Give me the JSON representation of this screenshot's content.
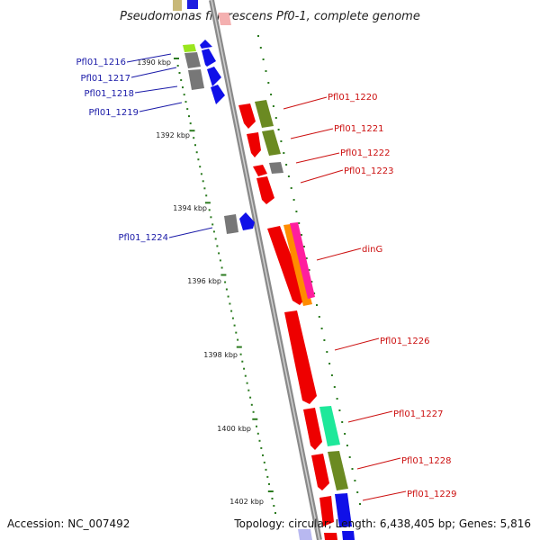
{
  "header": {
    "title": "Pseudomonas fluorescens Pf0-1, complete genome"
  },
  "footer": {
    "accession": "Accession: NC_007492",
    "summary": "Topology: circular; Length: 6,438,405 bp; Genes: 5,816"
  },
  "colors": {
    "backbone": "#8c8c8c",
    "tick": "#2a7a1e",
    "left_label": "#1a1aa8",
    "right_label": "#cc1010"
  },
  "ruler": {
    "labels": [
      "1390 kbp",
      "1392 kbp",
      "1394 kbp",
      "1396 kbp",
      "1398 kbp",
      "1400 kbp",
      "1402 kbp"
    ]
  },
  "genes_left": [
    "Pfl01_1216",
    "Pfl01_1217",
    "Pfl01_1218",
    "Pfl01_1219",
    "Pfl01_1224"
  ],
  "genes_right": [
    "Pfl01_1220",
    "Pfl01_1221",
    "Pfl01_1222",
    "Pfl01_1223",
    "dinG",
    "Pfl01_1226",
    "Pfl01_1227",
    "Pfl01_1228",
    "Pfl01_1229"
  ]
}
